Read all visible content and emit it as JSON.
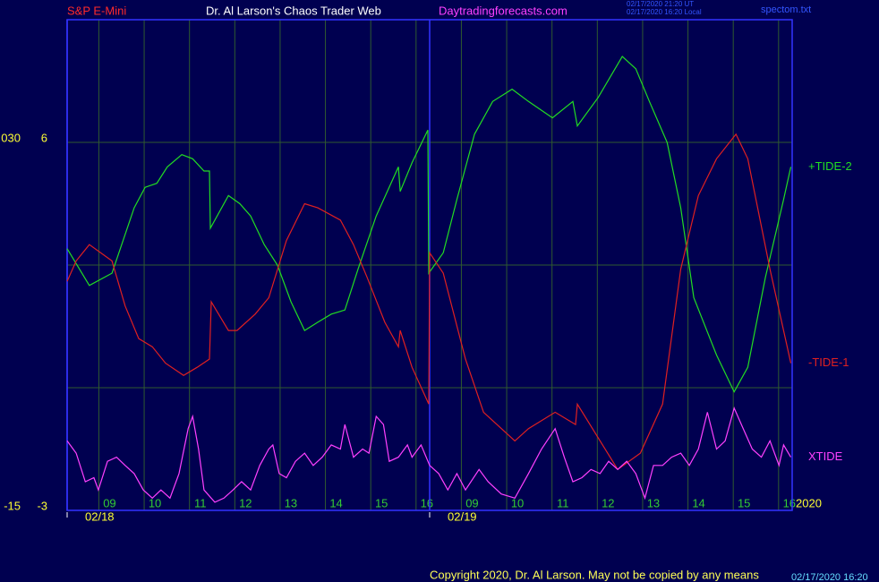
{
  "chart_data": {
    "type": "line",
    "title": "S&P E-Mini",
    "subtitle": "Dr. Al Larson's Chaos Trader Web",
    "website": "Daytradingforecasts.com",
    "timestamps": [
      "02/17/2020 21:20 UT",
      "02/17/2020 16:20 Local"
    ],
    "file_label": "spectom.txt",
    "year_label": "2020",
    "copyright": "Copyright 2020, Dr. Al Larson. May not be copied by any means",
    "footer_stamp": "02/17/2020 16:20",
    "xlim": [
      0,
      16
    ],
    "ylim": [
      -3,
      9
    ],
    "y2lim": [
      -15,
      45
    ],
    "xticks": [
      {
        "value": 0.7,
        "label": "09"
      },
      {
        "value": 1.7,
        "label": "10"
      },
      {
        "value": 2.7,
        "label": "11"
      },
      {
        "value": 3.7,
        "label": "12"
      },
      {
        "value": 4.7,
        "label": "13"
      },
      {
        "value": 5.7,
        "label": "14"
      },
      {
        "value": 6.7,
        "label": "15"
      },
      {
        "value": 7.7,
        "label": "16"
      },
      {
        "value": 8.7,
        "label": "09"
      },
      {
        "value": 9.7,
        "label": "10"
      },
      {
        "value": 10.7,
        "label": "11"
      },
      {
        "value": 11.7,
        "label": "12"
      },
      {
        "value": 12.7,
        "label": "13"
      },
      {
        "value": 13.7,
        "label": "14"
      },
      {
        "value": 14.7,
        "label": "15"
      },
      {
        "value": 15.7,
        "label": "16"
      }
    ],
    "yticks": [
      -3,
      6
    ],
    "y2ticks": [
      {
        "value": 30,
        "label": "030"
      },
      -15
    ],
    "grid_y": [
      0,
      3,
      6
    ],
    "date_labels": [
      {
        "value": 0,
        "label": "02/18"
      },
      {
        "value": 8,
        "label": "02/19"
      }
    ],
    "series": [
      {
        "name": "+TIDE-2",
        "color": "#22dd22",
        "x": [
          0,
          0.49,
          0.99,
          1.48,
          1.72,
          1.98,
          2.21,
          2.53,
          2.77,
          3.02,
          3.14,
          3.16,
          3.56,
          3.81,
          4.05,
          4.35,
          4.64,
          4.94,
          5.24,
          5.53,
          5.83,
          6.13,
          6.42,
          6.82,
          7.31,
          7.35,
          7.61,
          7.96,
          7.98,
          8.3,
          8.6,
          8.99,
          9.39,
          9.82,
          10.18,
          10.71,
          11.16,
          11.26,
          11.72,
          12.25,
          12.55,
          12.85,
          13.24,
          13.54,
          13.83,
          14.33,
          14.72,
          15.02,
          15.41,
          15.81,
          15.97
        ],
        "values": [
          3.4,
          2.5,
          2.8,
          4.4,
          4.9,
          5.0,
          5.4,
          5.7,
          5.6,
          5.3,
          5.3,
          3.9,
          4.7,
          4.5,
          4.2,
          3.5,
          3.0,
          2.1,
          1.4,
          1.6,
          1.8,
          1.9,
          2.9,
          4.2,
          5.4,
          4.8,
          5.5,
          6.3,
          2.8,
          3.3,
          4.6,
          6.2,
          7.0,
          7.3,
          7.0,
          6.6,
          7.0,
          6.4,
          7.1,
          8.1,
          7.8,
          7.0,
          6.0,
          4.4,
          2.2,
          0.8,
          -0.1,
          0.5,
          2.7,
          4.6,
          5.4
        ]
      },
      {
        "name": "-TIDE-1",
        "color": "#e02020",
        "x": [
          0,
          0.2,
          0.49,
          0.99,
          1.28,
          1.58,
          1.88,
          2.17,
          2.57,
          2.87,
          3.14,
          3.18,
          3.56,
          3.75,
          4.15,
          4.45,
          4.84,
          5.24,
          5.53,
          6.03,
          6.32,
          6.62,
          7.01,
          7.31,
          7.35,
          7.61,
          7.98,
          8.0,
          8.3,
          8.79,
          9.19,
          9.88,
          10.18,
          10.77,
          11.22,
          11.26,
          11.76,
          12.15,
          12.65,
          13.14,
          13.54,
          13.93,
          14.33,
          14.76,
          15.02,
          15.51,
          15.97
        ],
        "values": [
          2.6,
          3.1,
          3.5,
          3.1,
          2.0,
          1.2,
          1.0,
          0.6,
          0.3,
          0.5,
          0.7,
          2.1,
          1.4,
          1.4,
          1.8,
          2.2,
          3.6,
          4.5,
          4.4,
          4.1,
          3.5,
          2.7,
          1.6,
          1.0,
          1.4,
          0.5,
          -0.4,
          3.3,
          2.8,
          0.7,
          -0.6,
          -1.3,
          -1.0,
          -0.6,
          -0.9,
          -0.4,
          -1.3,
          -2.0,
          -1.6,
          -0.4,
          2.9,
          4.7,
          5.6,
          6.2,
          5.6,
          2.9,
          0.6
        ]
      },
      {
        "name": "XTIDE",
        "color": "#ff40ff",
        "x": [
          0,
          0.2,
          0.4,
          0.59,
          0.69,
          0.89,
          1.09,
          1.28,
          1.48,
          1.68,
          1.88,
          2.07,
          2.27,
          2.47,
          2.67,
          2.77,
          2.9,
          3.02,
          3.26,
          3.46,
          3.66,
          3.85,
          4.05,
          4.25,
          4.45,
          4.54,
          4.68,
          4.84,
          5.04,
          5.24,
          5.43,
          5.63,
          5.83,
          6.03,
          6.13,
          6.32,
          6.52,
          6.66,
          6.82,
          6.98,
          7.11,
          7.31,
          7.51,
          7.61,
          7.81,
          8.0,
          8.2,
          8.4,
          8.6,
          8.79,
          9.09,
          9.29,
          9.58,
          9.88,
          10.18,
          10.47,
          10.77,
          10.97,
          11.16,
          11.36,
          11.56,
          11.76,
          11.95,
          12.15,
          12.35,
          12.55,
          12.75,
          12.94,
          13.14,
          13.34,
          13.54,
          13.73,
          13.93,
          14.13,
          14.33,
          14.52,
          14.72,
          14.92,
          15.12,
          15.32,
          15.51,
          15.71,
          15.81,
          15.97
        ],
        "values": [
          -1.3,
          -1.6,
          -2.3,
          -2.2,
          -2.5,
          -1.8,
          -1.7,
          -1.9,
          -2.1,
          -2.5,
          -2.7,
          -2.5,
          -2.7,
          -2.1,
          -1.0,
          -0.7,
          -1.5,
          -2.5,
          -2.8,
          -2.7,
          -2.5,
          -2.3,
          -2.5,
          -1.9,
          -1.5,
          -1.4,
          -2.1,
          -2.2,
          -1.8,
          -1.6,
          -1.9,
          -1.7,
          -1.4,
          -1.5,
          -0.9,
          -1.7,
          -1.5,
          -1.6,
          -0.7,
          -0.9,
          -1.8,
          -1.7,
          -1.4,
          -1.7,
          -1.4,
          -1.9,
          -2.1,
          -2.5,
          -2.1,
          -2.5,
          -2.0,
          -2.3,
          -2.6,
          -2.7,
          -2.1,
          -1.5,
          -1.0,
          -1.7,
          -2.3,
          -2.2,
          -2.0,
          -2.1,
          -1.8,
          -2.0,
          -1.8,
          -2.1,
          -2.7,
          -1.9,
          -1.9,
          -1.7,
          -1.6,
          -1.9,
          -1.5,
          -0.6,
          -1.5,
          -1.3,
          -0.5,
          -1.0,
          -1.5,
          -1.7,
          -1.3,
          -1.9,
          -1.4,
          -1.7
        ]
      }
    ]
  }
}
